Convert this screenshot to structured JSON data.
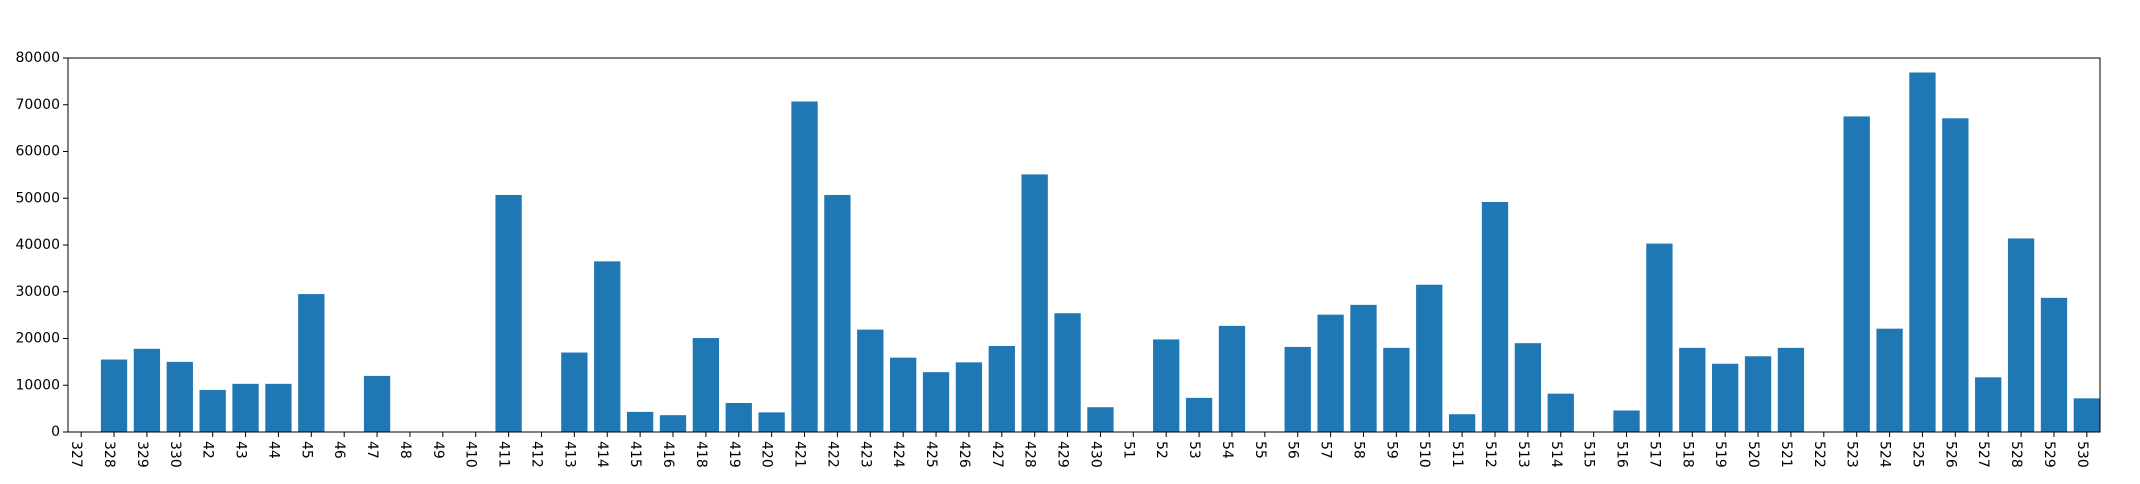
{
  "chart_data": {
    "type": "bar",
    "title": "",
    "xlabel": "",
    "ylabel": "",
    "bar_color": "#1f77b4",
    "grid": false,
    "ylim": [
      0,
      80000
    ],
    "yticks": [
      0,
      10000,
      20000,
      30000,
      40000,
      50000,
      60000,
      70000,
      80000
    ],
    "categories": [
      "327",
      "328",
      "329",
      "330",
      "42",
      "43",
      "44",
      "45",
      "46",
      "47",
      "48",
      "49",
      "410",
      "411",
      "412",
      "413",
      "414",
      "415",
      "416",
      "418",
      "419",
      "420",
      "421",
      "422",
      "423",
      "424",
      "425",
      "426",
      "427",
      "428",
      "429",
      "430",
      "51",
      "52",
      "53",
      "54",
      "55",
      "56",
      "57",
      "58",
      "59",
      "510",
      "511",
      "512",
      "513",
      "514",
      "515",
      "516",
      "517",
      "518",
      "519",
      "520",
      "521",
      "522",
      "523",
      "524",
      "525",
      "526",
      "527",
      "528",
      "529",
      "530"
    ],
    "values": [
      0,
      15500,
      17800,
      15000,
      9000,
      10300,
      10300,
      29500,
      0,
      12000,
      0,
      0,
      0,
      50700,
      0,
      17000,
      36500,
      4300,
      3600,
      20100,
      6200,
      4200,
      70700,
      50700,
      21900,
      15900,
      12800,
      14900,
      18400,
      55100,
      25400,
      5300,
      0,
      19800,
      7300,
      22700,
      0,
      18200,
      25100,
      27200,
      18000,
      31500,
      3800,
      49200,
      19000,
      8200,
      0,
      4600,
      40300,
      18000,
      14600,
      16200,
      18000,
      0,
      67500,
      22100,
      76900,
      67100,
      11700,
      41400,
      28700,
      7200
    ]
  }
}
